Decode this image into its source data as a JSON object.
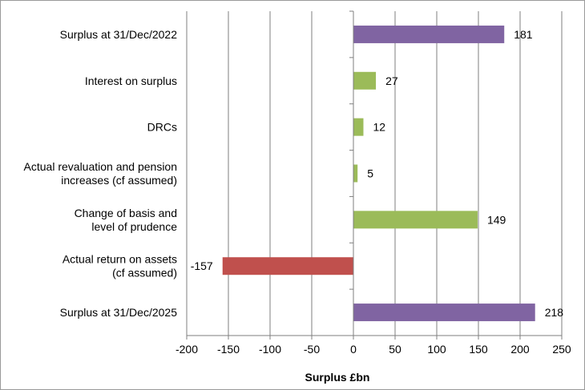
{
  "chart_data": {
    "type": "bar",
    "orientation": "horizontal",
    "categories": [
      "Surplus at 31/Dec/2022",
      "Interest on surplus",
      "DRCs",
      "Actual revaluation and pension increases (cf assumed)",
      "Change of basis and level of prudence",
      "Actual return on assets (cf assumed)",
      "Surplus at 31/Dec/2025"
    ],
    "category_lines": [
      [
        "Surplus at 31/Dec/2022"
      ],
      [
        "Interest on surplus"
      ],
      [
        "DRCs"
      ],
      [
        "Actual revaluation and pension",
        "increases (cf assumed)"
      ],
      [
        "Change of basis and",
        "level of prudence"
      ],
      [
        "Actual return on assets",
        "(cf assumed)"
      ],
      [
        "Surplus at 31/Dec/2025"
      ]
    ],
    "values": [
      181,
      27,
      12,
      5,
      149,
      -157,
      218
    ],
    "data_labels": [
      "181",
      "27",
      "12",
      "5",
      "149",
      "-157",
      "218"
    ],
    "bar_colors": [
      "#8064a2",
      "#9bbb59",
      "#9bbb59",
      "#9bbb59",
      "#9bbb59",
      "#c0504d",
      "#8064a2"
    ],
    "xlabel": "Surplus £bn",
    "xlim": [
      -200,
      250
    ],
    "xticks": [
      -200,
      -150,
      -100,
      -50,
      0,
      50,
      100,
      150,
      200,
      250
    ],
    "grid": "vertical",
    "legend": "none"
  }
}
